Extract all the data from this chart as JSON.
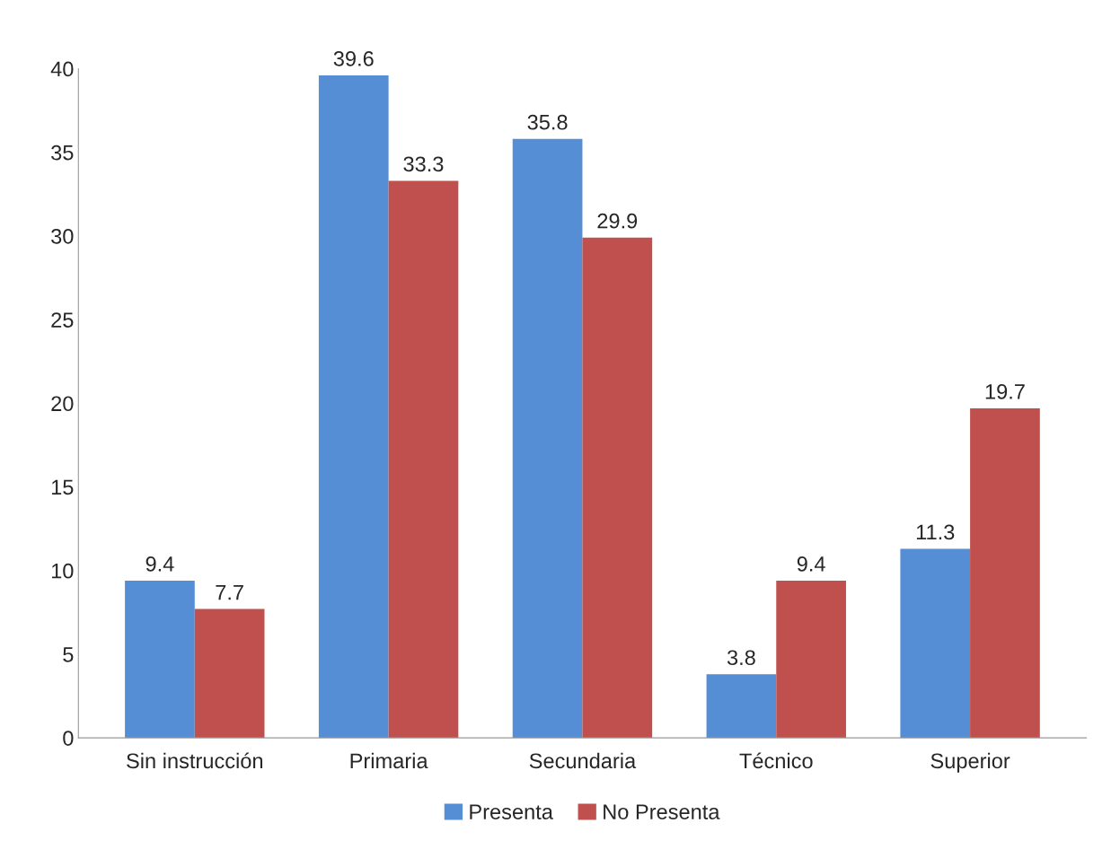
{
  "chart_data": {
    "type": "bar",
    "categories": [
      "Sin instrucción",
      "Primaria",
      "Secundaria",
      "Técnico",
      "Superior"
    ],
    "series": [
      {
        "name": "Presenta",
        "color": "#558ed5",
        "values": [
          9.4,
          39.6,
          35.8,
          3.8,
          11.3
        ]
      },
      {
        "name": "No Presenta",
        "color": "#c0504d",
        "values": [
          7.7,
          33.3,
          29.9,
          9.4,
          19.7
        ]
      }
    ],
    "ylim": [
      0,
      40
    ],
    "yticks": [
      0,
      5,
      10,
      15,
      20,
      25,
      30,
      35,
      40
    ],
    "data_labels": true,
    "grid": false,
    "legend": "bottom"
  }
}
